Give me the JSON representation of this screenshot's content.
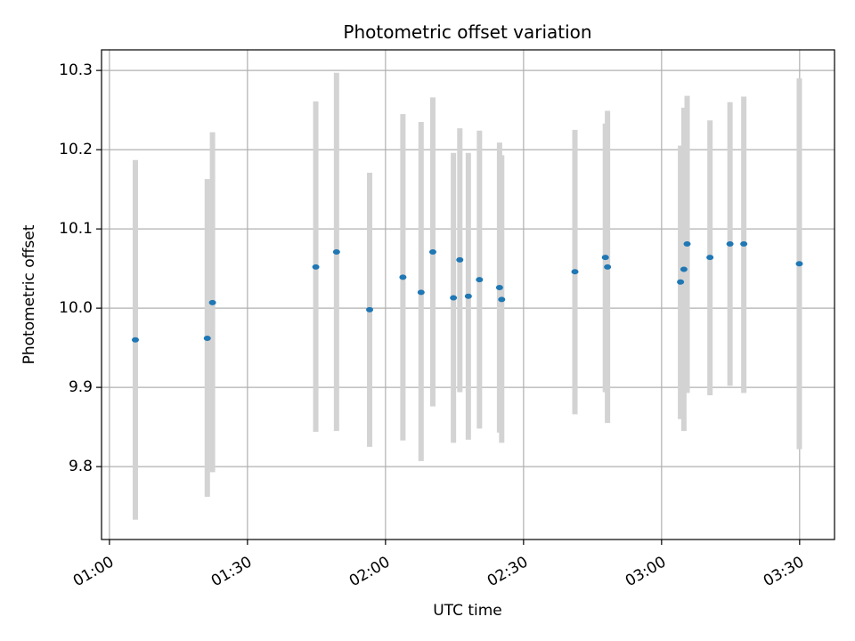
{
  "chart_data": {
    "type": "scatter",
    "title": "Photometric offset variation",
    "xlabel": "UTC time",
    "ylabel": "Photometric offset",
    "xlim": [
      "00:58:17",
      "03:37:35"
    ],
    "ylim": [
      9.708,
      10.326
    ],
    "grid": true,
    "x_ticks": [
      "01:00",
      "01:30",
      "02:00",
      "02:30",
      "03:00",
      "03:30"
    ],
    "y_ticks": [
      "9.8",
      "9.9",
      "10.0",
      "10.1",
      "10.2",
      "10.3"
    ],
    "colors": {
      "point": "#1f77b4",
      "errorbar": "#d3d3d3",
      "grid": "#b0b0b0",
      "axes": "#000000"
    },
    "series": [
      {
        "points": [
          {
            "x": "01:05:38",
            "y": 9.96,
            "low": 9.733,
            "high": 10.187
          },
          {
            "x": "01:21:16",
            "y": 9.962,
            "low": 9.762,
            "high": 10.163
          },
          {
            "x": "01:22:24",
            "y": 10.007,
            "low": 9.793,
            "high": 10.222
          },
          {
            "x": "01:44:51",
            "y": 10.052,
            "low": 9.844,
            "high": 10.261
          },
          {
            "x": "01:49:21",
            "y": 10.071,
            "low": 9.845,
            "high": 10.297
          },
          {
            "x": "01:56:33",
            "y": 9.998,
            "low": 9.825,
            "high": 10.171
          },
          {
            "x": "02:03:47",
            "y": 10.039,
            "low": 9.833,
            "high": 10.245
          },
          {
            "x": "02:07:44",
            "y": 10.02,
            "low": 9.807,
            "high": 10.235
          },
          {
            "x": "02:10:17",
            "y": 10.071,
            "low": 9.876,
            "high": 10.266
          },
          {
            "x": "02:14:46",
            "y": 10.013,
            "low": 9.83,
            "high": 10.196
          },
          {
            "x": "02:16:09",
            "y": 10.061,
            "low": 9.894,
            "high": 10.227
          },
          {
            "x": "02:18:00",
            "y": 10.015,
            "low": 9.834,
            "high": 10.196
          },
          {
            "x": "02:20:25",
            "y": 10.036,
            "low": 9.848,
            "high": 10.224
          },
          {
            "x": "02:24:47",
            "y": 10.026,
            "low": 9.843,
            "high": 10.209
          },
          {
            "x": "02:25:15",
            "y": 10.011,
            "low": 9.83,
            "high": 10.193
          },
          {
            "x": "02:41:10",
            "y": 10.046,
            "low": 9.866,
            "high": 10.225
          },
          {
            "x": "02:47:47",
            "y": 10.064,
            "low": 9.894,
            "high": 10.233
          },
          {
            "x": "02:48:15",
            "y": 10.052,
            "low": 9.855,
            "high": 10.249
          },
          {
            "x": "03:04:07",
            "y": 10.033,
            "low": 9.86,
            "high": 10.205
          },
          {
            "x": "03:04:51",
            "y": 10.049,
            "low": 9.845,
            "high": 10.253
          },
          {
            "x": "03:05:33",
            "y": 10.081,
            "low": 9.893,
            "high": 10.268
          },
          {
            "x": "03:10:31",
            "y": 10.064,
            "low": 9.89,
            "high": 10.237
          },
          {
            "x": "03:14:52",
            "y": 10.081,
            "low": 9.902,
            "high": 10.26
          },
          {
            "x": "03:17:52",
            "y": 10.081,
            "low": 9.893,
            "high": 10.267
          },
          {
            "x": "03:29:56",
            "y": 10.056,
            "low": 9.822,
            "high": 10.29
          }
        ]
      }
    ]
  }
}
